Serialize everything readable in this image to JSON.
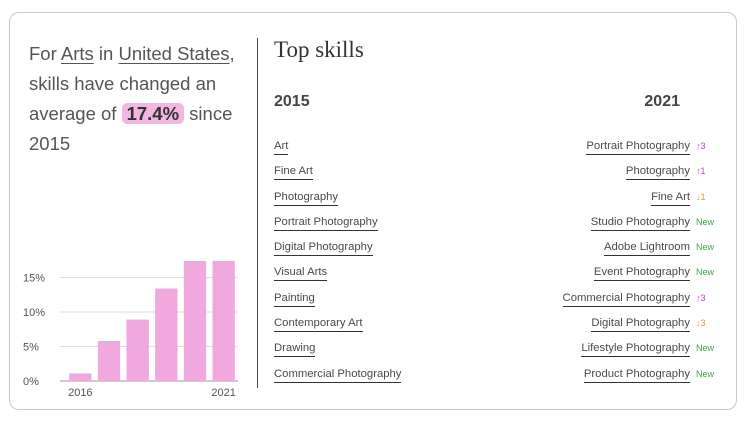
{
  "summary": {
    "prefix": "For ",
    "industry": "Arts",
    "in": " in ",
    "location": "United States",
    "middle": ", skills have changed an average of ",
    "percent": "17.4%",
    "suffix": " since 2015"
  },
  "top_skills": {
    "title": "Top skills",
    "col_2015": "2015",
    "col_2021": "2021",
    "skills_2015": [
      "Art",
      "Fine Art",
      "Photography",
      "Portrait Photography",
      "Digital Photography",
      "Visual Arts",
      "Painting",
      "Contemporary Art",
      "Drawing",
      "Commercial Photography"
    ],
    "skills_2021": [
      {
        "name": "Portrait Photography",
        "change": "↑3",
        "kind": "up"
      },
      {
        "name": "Photography",
        "change": "↑1",
        "kind": "up"
      },
      {
        "name": "Fine Art",
        "change": "↓1",
        "kind": "down"
      },
      {
        "name": "Studio Photography",
        "change": "New",
        "kind": "new"
      },
      {
        "name": "Adobe Lightroom",
        "change": "New",
        "kind": "new"
      },
      {
        "name": "Event Photography",
        "change": "New",
        "kind": "new"
      },
      {
        "name": "Commercial Photography",
        "change": "↑3",
        "kind": "up"
      },
      {
        "name": "Digital Photography",
        "change": "↓3",
        "kind": "down"
      },
      {
        "name": "Lifestyle Photography",
        "change": "New",
        "kind": "new"
      },
      {
        "name": "Product Photography",
        "change": "New",
        "kind": "new"
      }
    ]
  },
  "chart_data": {
    "type": "bar",
    "categories": [
      "2016",
      "2017",
      "2018",
      "2019",
      "2020",
      "2021"
    ],
    "values": [
      1.1,
      5.8,
      8.9,
      13.4,
      17.4,
      17.4
    ],
    "yticks": [
      "0%",
      "5%",
      "10%",
      "15%"
    ],
    "ytick_values": [
      0,
      5,
      10,
      15
    ],
    "xtick_labels": [
      "2016",
      "2021"
    ],
    "ylim": [
      0,
      20
    ],
    "bar_color": "#f1a8de",
    "grid": true
  },
  "colors": {
    "up": "#c23bd9",
    "down": "#e8903a",
    "new": "#3fa34d",
    "highlight": "#f3b6e0"
  }
}
